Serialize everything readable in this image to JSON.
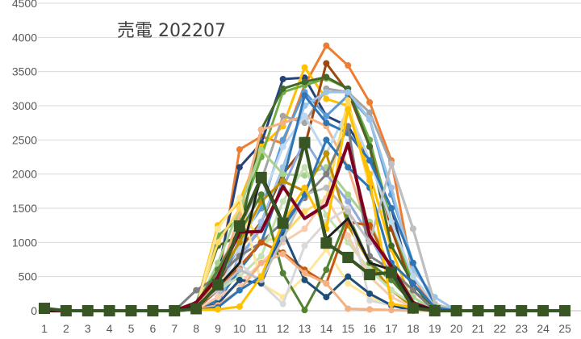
{
  "chart_data": {
    "type": "line",
    "title": "売電 202207",
    "xlabel": "",
    "ylabel": "",
    "x": [
      1,
      2,
      3,
      4,
      5,
      6,
      7,
      8,
      9,
      10,
      11,
      12,
      13,
      14,
      15,
      16,
      17,
      18,
      19,
      20,
      21,
      22,
      23,
      24,
      25
    ],
    "x_tick_labels": [
      "1",
      "2",
      "3",
      "4",
      "5",
      "6",
      "7",
      "8",
      "9",
      "10",
      "11",
      "12",
      "13",
      "14",
      "15",
      "16",
      "17",
      "18",
      "19",
      "20",
      "21",
      "22",
      "23",
      "24",
      "25"
    ],
    "y_ticks": [
      0,
      500,
      1000,
      1500,
      2000,
      2500,
      3000,
      3500,
      4000,
      4500
    ],
    "y_tick_labels": [
      "0",
      "500",
      "1000",
      "1500",
      "2000",
      "2500",
      "3000",
      "3500",
      "4000",
      "4500"
    ],
    "ylim": [
      0,
      4500
    ],
    "grid": "horizontal",
    "legend": "none",
    "series": [
      {
        "color": "#ED7D31",
        "marker": "circle",
        "width": 3,
        "values": [
          0,
          0,
          0,
          0,
          0,
          0,
          0,
          50,
          400,
          2360,
          2550,
          2450,
          3300,
          3880,
          3590,
          3050,
          2200,
          500,
          20,
          0,
          0,
          0,
          0,
          0,
          0
        ]
      },
      {
        "color": "#264478",
        "marker": "circle",
        "width": 3,
        "values": [
          0,
          0,
          0,
          0,
          0,
          0,
          0,
          30,
          550,
          2100,
          2450,
          3390,
          3410,
          2850,
          2700,
          2200,
          1500,
          300,
          10,
          0,
          0,
          0,
          0,
          0,
          0
        ]
      },
      {
        "color": "#FFC000",
        "marker": "circle",
        "width": 3,
        "values": [
          0,
          0,
          0,
          0,
          0,
          0,
          0,
          60,
          1250,
          1600,
          2400,
          2700,
          3560,
          3100,
          3000,
          2000,
          900,
          100,
          0,
          0,
          0,
          0,
          0,
          0,
          0
        ]
      },
      {
        "color": "#70AD47",
        "marker": "circle",
        "width": 3,
        "values": [
          0,
          0,
          0,
          0,
          0,
          0,
          0,
          100,
          1100,
          1350,
          2250,
          3200,
          3300,
          3400,
          3250,
          2500,
          1300,
          400,
          0,
          0,
          0,
          0,
          0,
          0,
          0
        ]
      },
      {
        "color": "#5B9BD5",
        "marker": "circle",
        "width": 3,
        "values": [
          0,
          0,
          0,
          0,
          0,
          0,
          0,
          20,
          300,
          1050,
          1500,
          2500,
          3200,
          2850,
          3150,
          2800,
          1700,
          700,
          100,
          0,
          0,
          0,
          0,
          0,
          0
        ]
      },
      {
        "color": "#A5A5A5",
        "marker": "circle",
        "width": 3,
        "values": [
          0,
          0,
          0,
          0,
          0,
          0,
          0,
          40,
          600,
          1200,
          1900,
          2850,
          2750,
          3250,
          3200,
          2900,
          2150,
          1200,
          100,
          0,
          0,
          0,
          0,
          0,
          0
        ]
      },
      {
        "color": "#9E480E",
        "marker": "circle",
        "width": 3,
        "values": [
          0,
          0,
          0,
          0,
          0,
          0,
          0,
          30,
          350,
          900,
          1300,
          2000,
          2400,
          3620,
          3200,
          2400,
          1200,
          300,
          0,
          0,
          0,
          0,
          0,
          0,
          0
        ]
      },
      {
        "color": "#43682B",
        "marker": "circle",
        "width": 3,
        "values": [
          0,
          0,
          0,
          0,
          0,
          0,
          0,
          80,
          950,
          1100,
          2650,
          3250,
          3350,
          3420,
          3250,
          2400,
          950,
          400,
          0,
          0,
          0,
          0,
          0,
          0,
          0
        ]
      },
      {
        "color": "#F4B183",
        "marker": "circle",
        "width": 3,
        "values": [
          0,
          0,
          0,
          0,
          0,
          0,
          0,
          50,
          450,
          1400,
          2650,
          2750,
          2850,
          2700,
          2100,
          1100,
          500,
          100,
          0,
          0,
          0,
          0,
          0,
          0,
          0
        ]
      },
      {
        "color": "#9DC3E6",
        "marker": "circle",
        "width": 3,
        "values": [
          0,
          0,
          0,
          0,
          0,
          0,
          0,
          20,
          200,
          700,
          1300,
          2100,
          3000,
          3200,
          3200,
          2800,
          1800,
          600,
          200,
          0,
          0,
          0,
          0,
          0,
          0
        ]
      },
      {
        "color": "#BDD7EE",
        "marker": "circle",
        "width": 3,
        "values": [
          0,
          0,
          0,
          0,
          0,
          0,
          0,
          20,
          300,
          900,
          1600,
          2400,
          2850,
          2300,
          2950,
          2200,
          1300,
          500,
          100,
          0,
          0,
          0,
          0,
          0,
          0
        ]
      },
      {
        "color": "#2E75B6",
        "marker": "circle",
        "width": 3,
        "values": [
          0,
          0,
          0,
          0,
          0,
          0,
          0,
          10,
          150,
          600,
          1000,
          1900,
          3150,
          2750,
          2600,
          2200,
          1500,
          700,
          100,
          0,
          0,
          0,
          0,
          0,
          0
        ]
      },
      {
        "color": "#A9D18E",
        "marker": "circle",
        "width": 3,
        "values": [
          0,
          0,
          0,
          0,
          0,
          0,
          0,
          60,
          700,
          1500,
          2350,
          2000,
          1980,
          2100,
          1700,
          1300,
          600,
          200,
          0,
          0,
          0,
          0,
          0,
          0,
          0
        ]
      },
      {
        "color": "#FFD966",
        "marker": "circle",
        "width": 3,
        "values": [
          0,
          0,
          0,
          0,
          0,
          0,
          0,
          40,
          1000,
          1500,
          1000,
          1100,
          1450,
          1650,
          3080,
          1800,
          700,
          100,
          0,
          0,
          0,
          0,
          0,
          0,
          0
        ]
      },
      {
        "color": "#8FAADC",
        "marker": "circle",
        "width": 3,
        "values": [
          0,
          0,
          0,
          0,
          0,
          0,
          0,
          10,
          100,
          800,
          1200,
          1800,
          2500,
          2000,
          1600,
          1100,
          500,
          100,
          0,
          0,
          0,
          0,
          0,
          0,
          0
        ]
      },
      {
        "color": "#BF9000",
        "marker": "circle",
        "width": 3,
        "values": [
          0,
          0,
          0,
          0,
          0,
          0,
          0,
          30,
          500,
          1000,
          1600,
          1900,
          1750,
          2300,
          1250,
          700,
          300,
          50,
          0,
          0,
          0,
          0,
          0,
          0,
          0
        ]
      },
      {
        "color": "#7F7F7F",
        "marker": "circle",
        "width": 3,
        "values": [
          0,
          0,
          0,
          0,
          0,
          0,
          0,
          300,
          500,
          800,
          1000,
          1300,
          1650,
          2000,
          2700,
          800,
          600,
          300,
          0,
          0,
          0,
          0,
          0,
          0,
          0
        ]
      },
      {
        "color": "#C5E0B4",
        "marker": "circle",
        "width": 3,
        "values": [
          0,
          0,
          0,
          0,
          0,
          0,
          0,
          50,
          300,
          500,
          800,
          1600,
          2100,
          1400,
          1000,
          600,
          300,
          100,
          0,
          0,
          0,
          0,
          0,
          0,
          0
        ]
      },
      {
        "color": "#F8CBAD",
        "marker": "circle",
        "width": 3,
        "values": [
          0,
          0,
          0,
          0,
          0,
          0,
          0,
          20,
          200,
          400,
          700,
          1000,
          1200,
          1650,
          1100,
          500,
          200,
          50,
          0,
          0,
          0,
          0,
          0,
          0,
          0
        ]
      },
      {
        "color": "#FFE699",
        "marker": "circle",
        "width": 3,
        "values": [
          0,
          0,
          0,
          0,
          0,
          0,
          0,
          30,
          1200,
          1650,
          400,
          200,
          500,
          900,
          400,
          200,
          80,
          0,
          0,
          0,
          0,
          0,
          0,
          0,
          0
        ]
      },
      {
        "color": "#548235",
        "marker": "circle",
        "width": 3,
        "values": [
          0,
          0,
          0,
          0,
          0,
          0,
          0,
          100,
          600,
          1150,
          1700,
          550,
          10,
          600,
          1400,
          700,
          450,
          100,
          0,
          0,
          0,
          0,
          0,
          0,
          0
        ]
      },
      {
        "color": "#C55A11",
        "marker": "circle",
        "width": 3,
        "values": [
          0,
          0,
          0,
          0,
          0,
          0,
          0,
          30,
          300,
          650,
          1000,
          850,
          600,
          400,
          1300,
          1250,
          600,
          100,
          0,
          0,
          0,
          0,
          0,
          0,
          0
        ]
      },
      {
        "color": "#D9D9D9",
        "marker": "circle",
        "width": 3,
        "values": [
          0,
          0,
          0,
          0,
          0,
          0,
          0,
          50,
          400,
          700,
          400,
          100,
          950,
          1300,
          1500,
          150,
          80,
          0,
          0,
          0,
          0,
          0,
          0,
          0,
          0
        ]
      },
      {
        "color": "#1F4E79",
        "marker": "circle",
        "width": 3,
        "values": [
          0,
          0,
          0,
          0,
          0,
          0,
          0,
          10,
          100,
          450,
          400,
          1150,
          450,
          200,
          500,
          250,
          80,
          0,
          0,
          0,
          0,
          0,
          0,
          0,
          0
        ]
      },
      {
        "color": "#F4B183",
        "marker": "circle",
        "width": 3,
        "values": [
          0,
          0,
          0,
          0,
          0,
          0,
          0,
          20,
          80,
          300,
          700,
          830,
          550,
          400,
          30,
          20,
          10,
          0,
          0,
          0,
          0,
          0,
          0,
          0,
          0
        ]
      },
      {
        "color": "#BFBFBF",
        "marker": "circle",
        "width": 3,
        "values": [
          0,
          0,
          0,
          0,
          0,
          0,
          0,
          80,
          300,
          600,
          450,
          1050,
          1700,
          1800,
          1450,
          1000,
          2150,
          1200,
          100,
          0,
          0,
          0,
          0,
          0,
          0
        ]
      },
      {
        "color": "#2E75B6",
        "marker": "circle",
        "width": 3,
        "values": [
          0,
          0,
          0,
          0,
          0,
          0,
          0,
          10,
          50,
          300,
          500,
          1200,
          1700,
          2500,
          2100,
          1800,
          700,
          400,
          50,
          0,
          0,
          0,
          0,
          0,
          0
        ]
      },
      {
        "color": "#FFC000",
        "marker": "circle",
        "width": 3,
        "values": [
          0,
          0,
          0,
          0,
          0,
          0,
          0,
          10,
          20,
          60,
          500,
          1300,
          1800,
          1200,
          2950,
          1900,
          100,
          50,
          0,
          0,
          0,
          0,
          0,
          0,
          0
        ]
      },
      {
        "color": "#800020",
        "marker": "none",
        "width": 4,
        "values": [
          0,
          0,
          0,
          0,
          0,
          0,
          0,
          120,
          490,
          1150,
          1160,
          1820,
          1350,
          1550,
          2450,
          1100,
          650,
          120,
          0,
          0,
          0,
          0,
          0,
          0,
          0
        ]
      },
      {
        "color": "#1F1F1F",
        "marker": "none",
        "width": 3,
        "values": [
          0,
          0,
          0,
          0,
          0,
          0,
          0,
          60,
          350,
          700,
          2000,
          1300,
          2450,
          1050,
          1350,
          700,
          600,
          100,
          0,
          0,
          0,
          0,
          0,
          0,
          0
        ]
      },
      {
        "color": "#375623",
        "marker": "square",
        "width": 4,
        "values": [
          35,
          0,
          0,
          0,
          0,
          0,
          0,
          30,
          380,
          1240,
          1950,
          1280,
          2460,
          990,
          780,
          530,
          560,
          40,
          0,
          0,
          0,
          0,
          0,
          0,
          0
        ]
      }
    ]
  }
}
